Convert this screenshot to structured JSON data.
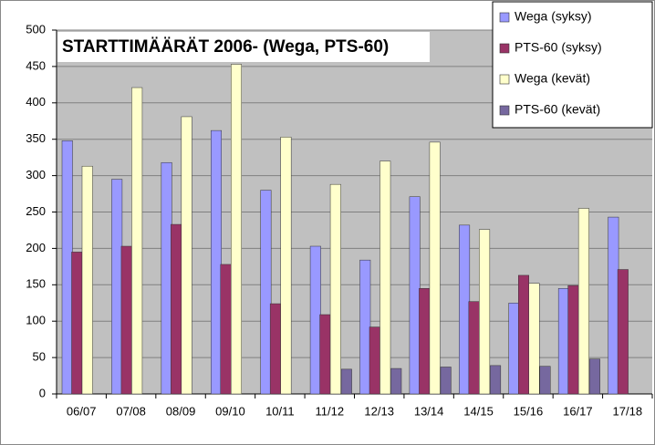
{
  "chart_data": {
    "type": "bar",
    "title": "STARTTIMÄÄRÄT 2006-  (Wega, PTS-60)",
    "categories": [
      "06/07",
      "07/08",
      "08/09",
      "09/10",
      "10/11",
      "11/12",
      "12/13",
      "13/14",
      "14/15",
      "15/16",
      "16/17",
      "17/18"
    ],
    "series": [
      {
        "name": "Wega (syksy)",
        "color": "#9999ff",
        "values": [
          348,
          295,
          318,
          362,
          280,
          203,
          184,
          271,
          232,
          125,
          145,
          243
        ]
      },
      {
        "name": "PTS-60 (syksy)",
        "color": "#993366",
        "values": [
          195,
          203,
          233,
          178,
          124,
          109,
          92,
          145,
          127,
          163,
          149,
          171
        ]
      },
      {
        "name": "Wega (kevät)",
        "color": "#ffffcc",
        "values": [
          313,
          421,
          381,
          453,
          353,
          288,
          320,
          346,
          226,
          152,
          255,
          null
        ]
      },
      {
        "name": "PTS-60 (kevät)",
        "color": "#76689f",
        "values": [
          null,
          null,
          null,
          null,
          null,
          34,
          35,
          37,
          39,
          38,
          48,
          null
        ]
      }
    ],
    "ylim": [
      0,
      500
    ],
    "yticks": [
      0,
      50,
      100,
      150,
      200,
      250,
      300,
      350,
      400,
      450,
      500
    ],
    "grid": true,
    "legend": "top-right",
    "background": "#c0c0c0"
  }
}
